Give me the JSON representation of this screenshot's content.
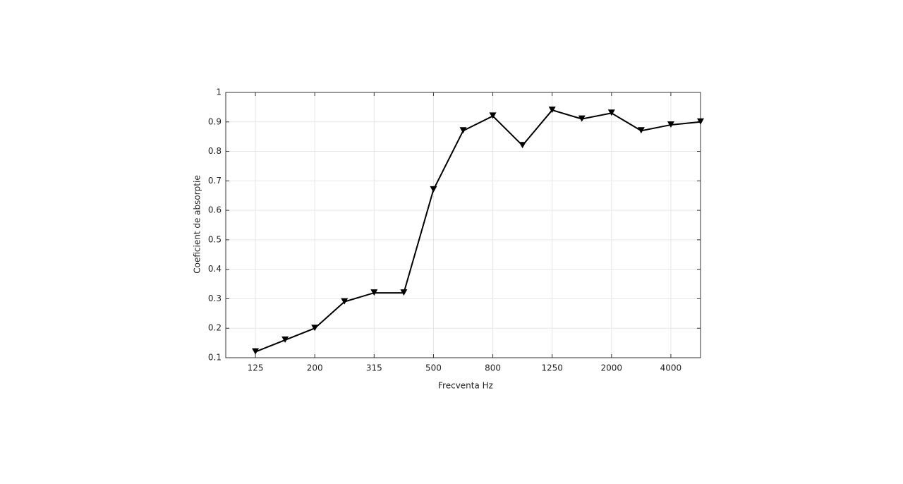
{
  "chart_data": {
    "type": "line",
    "xlabel": "Frecventa Hz",
    "ylabel": "Coeficient de absorptie",
    "categories": [
      "125",
      null,
      "200",
      null,
      "315",
      null,
      "500",
      null,
      "800",
      null,
      "1250",
      null,
      "2000",
      null,
      "4000",
      null
    ],
    "series": [
      {
        "name": "Coeficient",
        "color": "#000000",
        "values": [
          0.12,
          0.16,
          0.2,
          0.29,
          0.32,
          0.32,
          0.67,
          0.87,
          0.92,
          0.82,
          0.94,
          0.91,
          0.93,
          0.87,
          0.89,
          0.9
        ]
      }
    ],
    "ylim": [
      0.1,
      1
    ],
    "yticks": [
      0.1,
      0.2,
      0.3,
      0.4,
      0.5,
      0.6,
      0.7,
      0.8,
      0.9,
      1
    ],
    "grid": true
  }
}
